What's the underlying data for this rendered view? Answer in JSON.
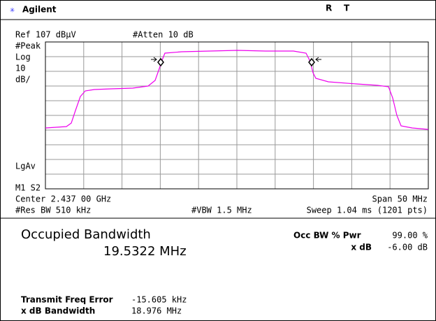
{
  "header": {
    "brand": "Agilent",
    "status": [
      "R",
      "T"
    ]
  },
  "settings": {
    "reference": "Ref 107 dBµV",
    "attenuation": "#Atten 10 dB",
    "side_labels": [
      "#Peak",
      "Log",
      "10",
      "dB/"
    ],
    "average": "LgAv",
    "markers": "M1 S2",
    "center": "Center 2.437 00 GHz",
    "span": "Span 50 MHz",
    "rbw": "#Res BW 510 kHz",
    "vbw": "#VBW 1.5 MHz",
    "sweep": "Sweep 1.04 ms (1201 pts)"
  },
  "measurement": {
    "title": "Occupied Bandwidth",
    "result": "19.5322 MHz",
    "params": [
      {
        "label": "Occ BW % Pwr",
        "value": "99.00 %"
      },
      {
        "label": "x dB",
        "value": "-6.00 dB"
      }
    ],
    "errors": [
      {
        "label": "Transmit Freq Error",
        "value": "-15.605 kHz"
      },
      {
        "label": "x dB Bandwidth",
        "value": "18.976 MHz"
      }
    ]
  }
}
